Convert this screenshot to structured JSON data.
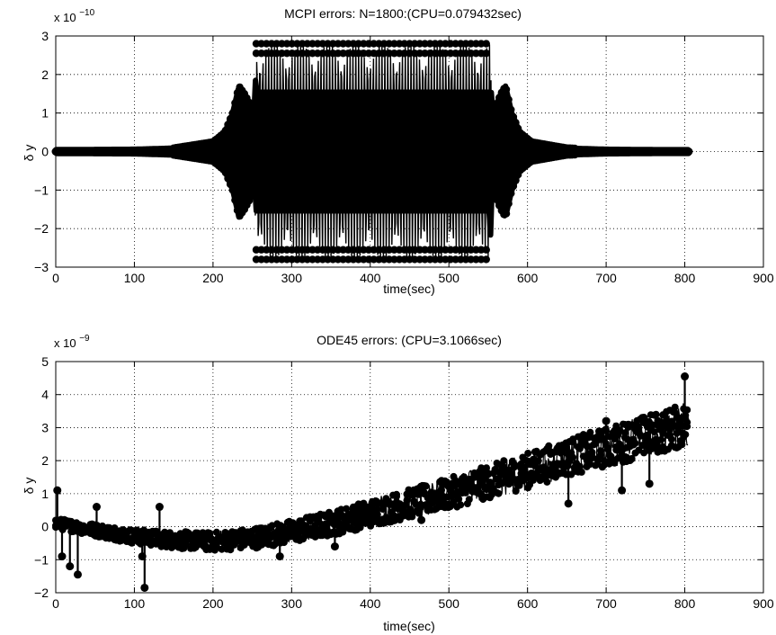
{
  "chart_data": [
    {
      "type": "line",
      "title": "MCPI errors: N=1800:(CPU=0.079432sec)",
      "xlabel": "time(sec)",
      "ylabel": "δ y",
      "y_multiplier": {
        "base": "x 10",
        "exponent": "−10"
      },
      "xlim": [
        0,
        900
      ],
      "ylim": [
        -3,
        3
      ],
      "xticks": [
        "0",
        "100",
        "200",
        "300",
        "400",
        "500",
        "600",
        "700",
        "800",
        "900"
      ],
      "yticks": [
        "−3",
        "−2",
        "−1",
        "0",
        "1",
        "2",
        "3"
      ],
      "grid": true,
      "marker": "filled-circle",
      "color": "#000000",
      "envelope": {
        "x": [
          0,
          100,
          150,
          200,
          215,
          225,
          233,
          240,
          248,
          253,
          255,
          300,
          400,
          500,
          552,
          555,
          560,
          566,
          572,
          580,
          590,
          605,
          650,
          700,
          760,
          805
        ],
        "amplitude": [
          0.05,
          0.06,
          0.09,
          0.25,
          0.5,
          1.0,
          1.7,
          1.5,
          1.2,
          0.9,
          2.8,
          2.8,
          2.8,
          2.8,
          2.8,
          0.9,
          1.2,
          1.5,
          1.7,
          1.0,
          0.5,
          0.25,
          0.09,
          0.06,
          0.05,
          0.05
        ]
      }
    },
    {
      "type": "line",
      "title": "ODE45 errors: (CPU=3.1066sec)",
      "xlabel": "time(sec)",
      "ylabel": "δ y",
      "y_multiplier": {
        "base": "x 10",
        "exponent": "−9"
      },
      "xlim": [
        0,
        900
      ],
      "ylim": [
        -2,
        5
      ],
      "xticks": [
        "0",
        "100",
        "200",
        "300",
        "400",
        "500",
        "600",
        "700",
        "800",
        "900"
      ],
      "yticks": [
        "−2",
        "−1",
        "0",
        "1",
        "2",
        "3",
        "4",
        "5"
      ],
      "grid": true,
      "marker": "filled-circle",
      "color": "#000000",
      "trend": {
        "x": [
          0,
          50,
          100,
          150,
          200,
          250,
          300,
          350,
          400,
          450,
          500,
          550,
          600,
          650,
          700,
          750,
          805
        ],
        "y": [
          0.1,
          -0.1,
          -0.3,
          -0.4,
          -0.45,
          -0.35,
          -0.15,
          0.1,
          0.4,
          0.7,
          1.0,
          1.35,
          1.7,
          2.1,
          2.4,
          2.75,
          3.1
        ]
      },
      "outliers": [
        {
          "x": 2,
          "y": 1.1
        },
        {
          "x": 8,
          "y": -0.9
        },
        {
          "x": 18,
          "y": -1.2
        },
        {
          "x": 28,
          "y": -1.45
        },
        {
          "x": 52,
          "y": 0.6
        },
        {
          "x": 110,
          "y": -0.9
        },
        {
          "x": 113,
          "y": -1.85
        },
        {
          "x": 132,
          "y": 0.6
        },
        {
          "x": 285,
          "y": -0.9
        },
        {
          "x": 355,
          "y": -0.6
        },
        {
          "x": 465,
          "y": 0.2
        },
        {
          "x": 540,
          "y": 1.5
        },
        {
          "x": 578,
          "y": 1.6
        },
        {
          "x": 652,
          "y": 0.7
        },
        {
          "x": 700,
          "y": 3.2
        },
        {
          "x": 720,
          "y": 1.1
        },
        {
          "x": 755,
          "y": 1.3
        },
        {
          "x": 800,
          "y": 4.55
        }
      ]
    }
  ]
}
